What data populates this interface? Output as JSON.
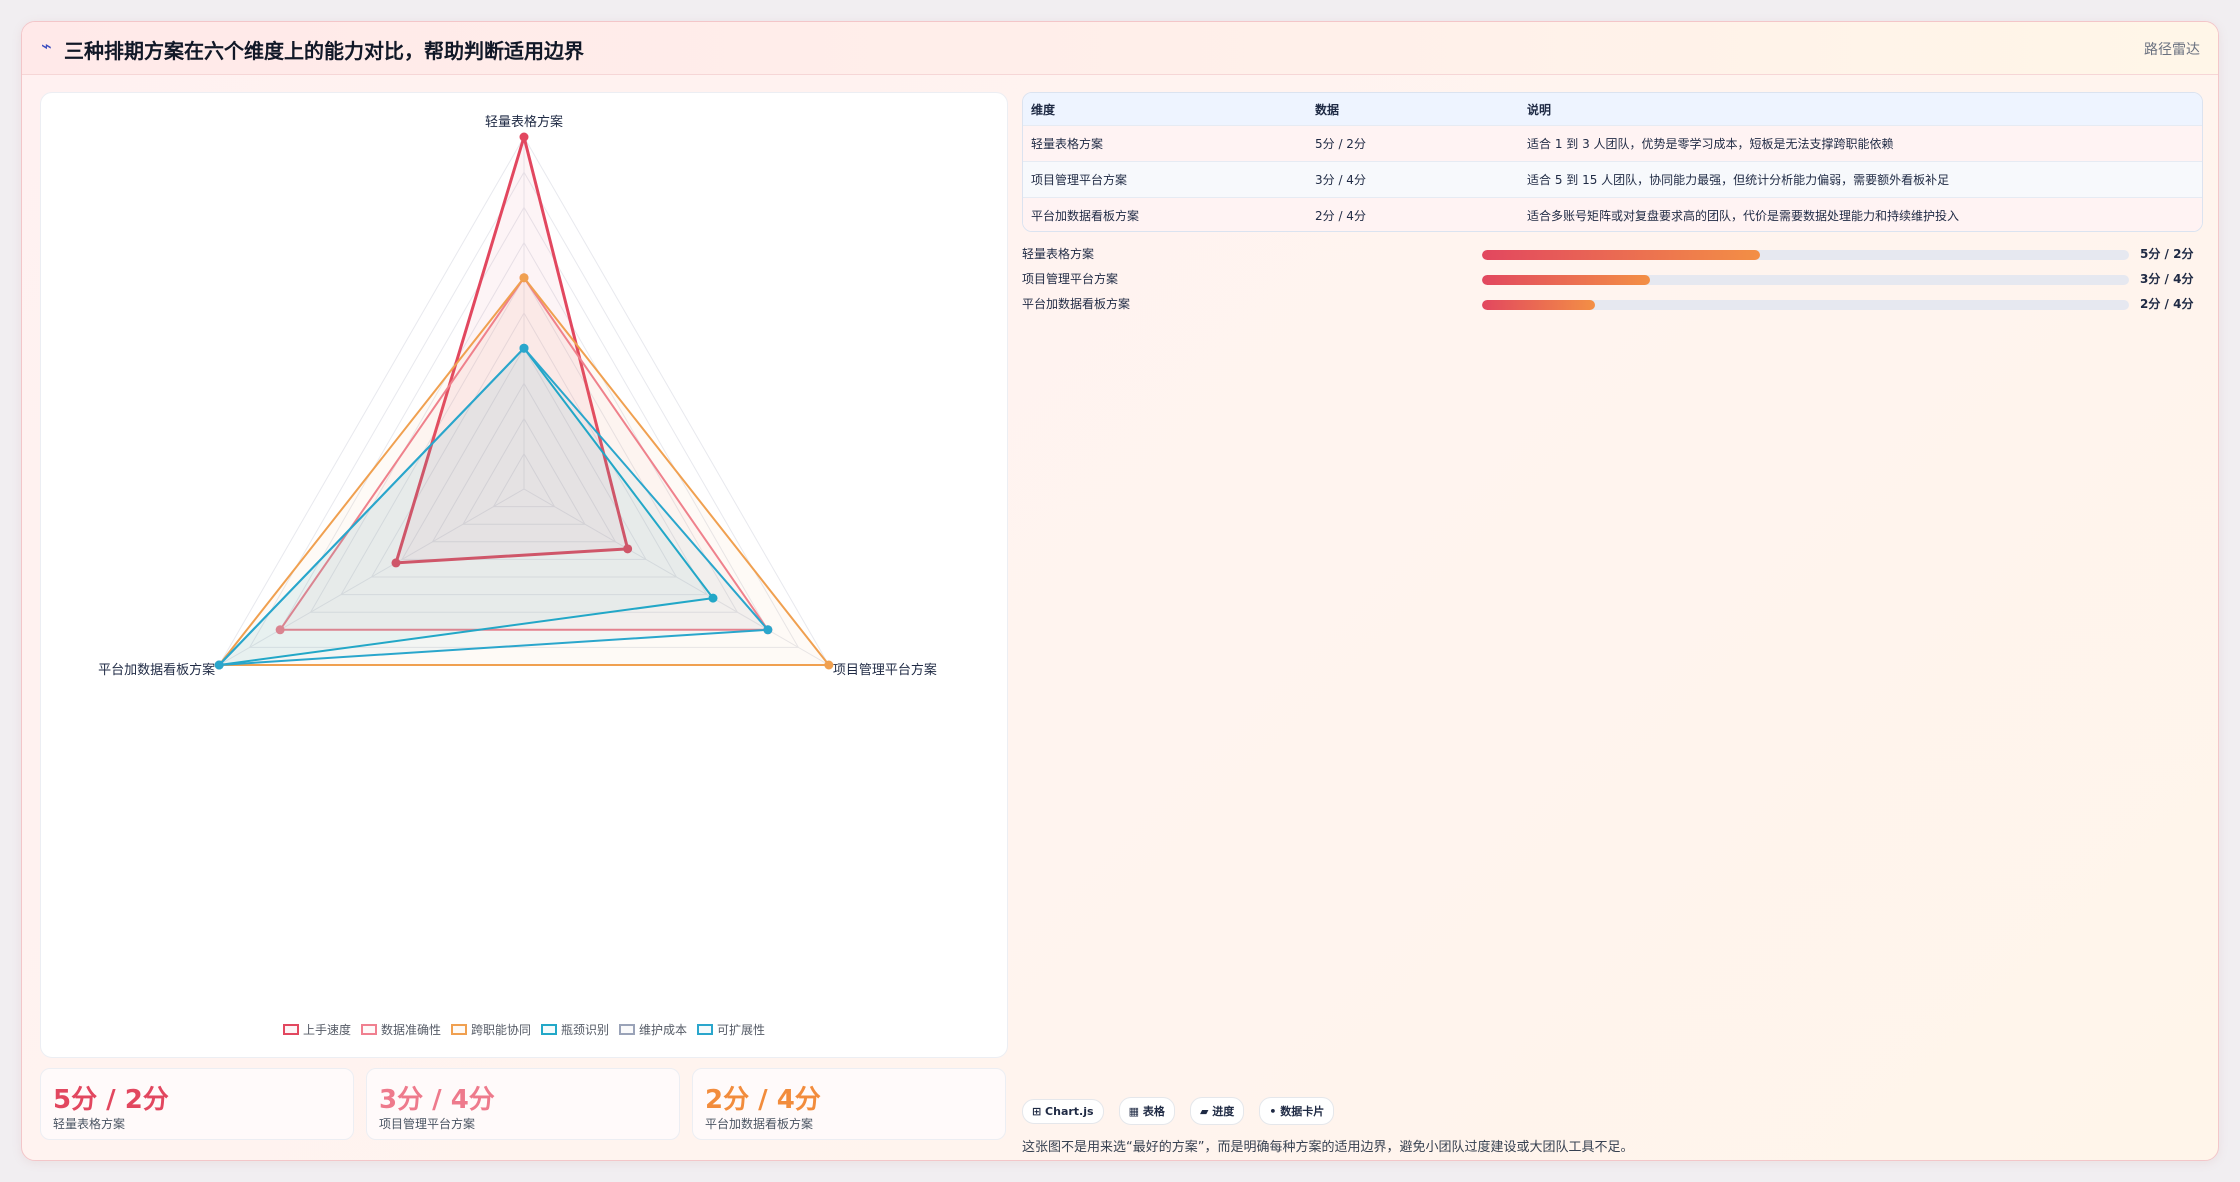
{
  "header": {
    "logo_icon": "⌁",
    "title": "三种排期方案在六个维度上的能力对比，帮助判断适用边界",
    "tag": "路径雷达"
  },
  "chart_data": {
    "type": "radar",
    "axes": [
      "轻量表格方案",
      "项目管理平台方案",
      "平台加数据看板方案"
    ],
    "rmax": 5,
    "rings": 10,
    "series": [
      {
        "name": "上手速度",
        "color": "#e2475f",
        "fill": "rgba(226,71,95,0.06)",
        "values": [
          5,
          1.7,
          2.1
        ],
        "width": 3
      },
      {
        "name": "数据准确性",
        "color": "#f08090",
        "fill": "rgba(240,128,144,0.05)",
        "values": [
          3,
          4,
          4
        ],
        "width": 2
      },
      {
        "name": "跨职能协同",
        "color": "#f0a050",
        "fill": "rgba(240,160,80,0.05)",
        "values": [
          3,
          5,
          5
        ],
        "width": 2
      },
      {
        "name": "瓶颈识别",
        "color": "#22a8c8",
        "fill": "rgba(34,168,200,0.05)",
        "values": [
          2,
          3.1,
          5
        ],
        "width": 2
      },
      {
        "name": "维护成本",
        "color": "#9aa3b8",
        "fill": "rgba(154,163,184,0.05)",
        "values": [
          0,
          0,
          0
        ],
        "width": 2
      },
      {
        "name": "可扩展性",
        "color": "#2aa6cc",
        "fill": "rgba(42,166,204,0.05)",
        "values": [
          2,
          4,
          5
        ],
        "width": 2
      }
    ]
  },
  "stats": [
    {
      "value": "5分 / 2分",
      "label": "轻量表格方案",
      "color": "#e2475f"
    },
    {
      "value": "3分 / 4分",
      "label": "项目管理平台方案",
      "color": "#ee7a8c"
    },
    {
      "value": "2分 / 4分",
      "label": "平台加数据看板方案",
      "color": "#f28c3c"
    }
  ],
  "table": {
    "headers": [
      "维度",
      "数据",
      "说明"
    ],
    "rows": [
      [
        "轻量表格方案",
        "5分 / 2分",
        "适合 1 到 3 人团队，优势是零学习成本，短板是无法支撑跨职能依赖"
      ],
      [
        "项目管理平台方案",
        "3分 / 4分",
        "适合 5 到 15 人团队，协同能力最强，但统计分析能力偏弱，需要额外看板补足"
      ],
      [
        "平台加数据看板方案",
        "2分 / 4分",
        "适合多账号矩阵或对复盘要求高的团队，代价是需要数据处理能力和持续维护投入"
      ]
    ]
  },
  "bars": [
    {
      "label": "轻量表格方案",
      "value": "5分 / 2分",
      "pct": 43
    },
    {
      "label": "项目管理平台方案",
      "value": "3分 / 4分",
      "pct": 26
    },
    {
      "label": "平台加数据看板方案",
      "value": "2分 / 4分",
      "pct": 17.5
    }
  ],
  "chips": [
    "⊞ Chart.js",
    "▦ 表格",
    "▰ 进度",
    "• 数据卡片"
  ],
  "note": "这张图不是用来选“最好的方案”，而是明确每种方案的适用边界，避免小团队过度建设或大团队工具不足。"
}
